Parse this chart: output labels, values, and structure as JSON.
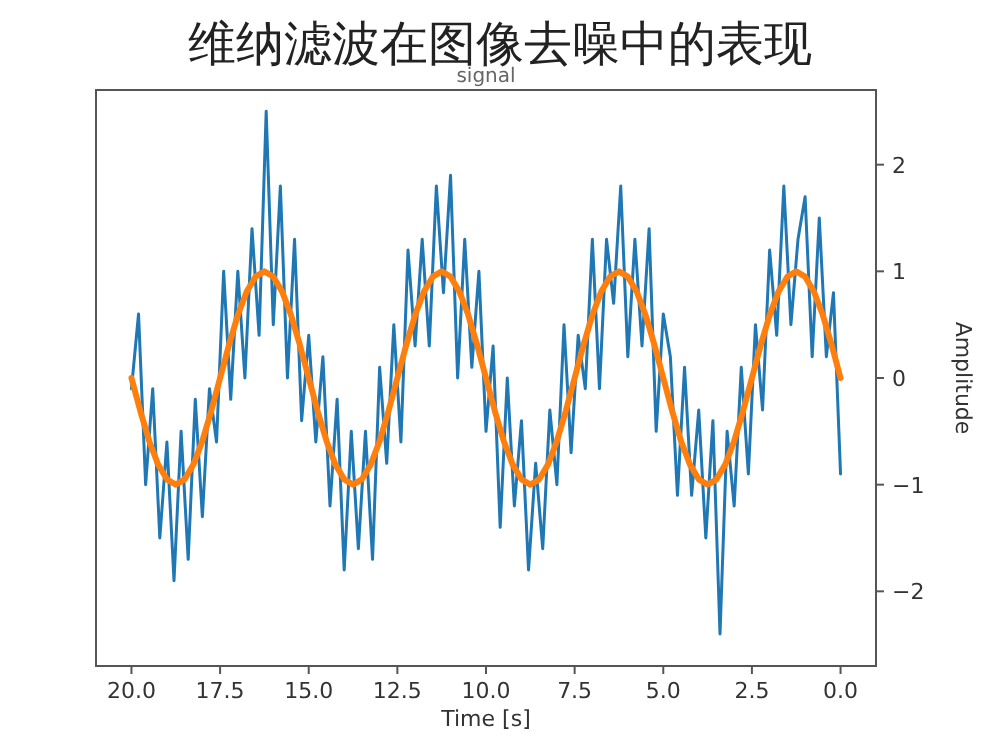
{
  "chart_data": {
    "type": "line",
    "title": "维纳滤波在图像去噪中的表现",
    "subtitle": "signal",
    "xlabel": "Time [s]",
    "ylabel": "Amplitude",
    "xlim": [
      21,
      -1
    ],
    "ylim": [
      -2.7,
      2.7
    ],
    "xticks": [
      {
        "value": 0,
        "label": "0.0"
      },
      {
        "value": 2.5,
        "label": "2.5"
      },
      {
        "value": 5,
        "label": "5.0"
      },
      {
        "value": 7.5,
        "label": "7.5"
      },
      {
        "value": 10,
        "label": "10.0"
      },
      {
        "value": 12.5,
        "label": "12.5"
      },
      {
        "value": 15,
        "label": "15.0"
      },
      {
        "value": 17.5,
        "label": "17.5"
      },
      {
        "value": 20,
        "label": "20.0"
      }
    ],
    "yticks": [
      {
        "value": -2,
        "label": "−2"
      },
      {
        "value": -1,
        "label": "−1"
      },
      0,
      1,
      2
    ],
    "series": [
      {
        "color": "#1f77b4",
        "x": [
          0,
          0.2,
          0.4,
          0.6,
          0.8,
          1,
          1.2,
          1.4,
          1.6,
          1.8,
          2,
          2.2,
          2.4,
          2.6,
          2.8,
          3,
          3.2,
          3.4,
          3.6,
          3.8,
          4,
          4.2,
          4.4,
          4.6,
          4.8,
          5,
          5.2,
          5.4,
          5.6,
          5.8,
          6,
          6.2,
          6.4,
          6.6,
          6.8,
          7,
          7.2,
          7.4,
          7.6,
          7.8,
          8,
          8.2,
          8.4,
          8.6,
          8.8,
          9,
          9.2,
          9.4,
          9.6,
          9.8,
          10,
          10.2,
          10.4,
          10.6,
          10.8,
          11,
          11.2,
          11.4,
          11.6,
          11.8,
          12,
          12.2,
          12.4,
          12.6,
          12.8,
          13,
          13.2,
          13.4,
          13.6,
          13.8,
          14,
          14.2,
          14.4,
          14.6,
          14.8,
          15,
          15.2,
          15.4,
          15.6,
          15.8,
          16,
          16.2,
          16.4,
          16.6,
          16.8,
          17,
          17.2,
          17.4,
          17.6,
          17.8,
          18,
          18.2,
          18.4,
          18.6,
          18.8,
          19,
          19.2,
          19.4,
          19.6,
          19.8,
          20
        ],
        "values": [
          -0.9,
          0.8,
          0.2,
          1.5,
          0.2,
          1.7,
          1.3,
          0.5,
          1.8,
          0.4,
          1.2,
          -0.3,
          0.5,
          -0.9,
          0.1,
          -1.2,
          -0.5,
          -2.4,
          -0.4,
          -1.5,
          -0.3,
          -1.1,
          0.1,
          -1.1,
          0.2,
          0.6,
          -0.5,
          1.4,
          0.3,
          1.3,
          0.2,
          1.8,
          0.7,
          1.3,
          -0.1,
          1.3,
          -0.1,
          0.4,
          -0.7,
          0.5,
          -1.0,
          -0.3,
          -1.6,
          -0.8,
          -1.8,
          -0.4,
          -1.2,
          0.0,
          -1.4,
          0.3,
          -0.5,
          1.0,
          0.1,
          1.3,
          0.0,
          1.9,
          0.8,
          1.8,
          0.3,
          1.3,
          0.3,
          1.2,
          -0.6,
          0.5,
          -0.8,
          0.1,
          -1.7,
          -0.5,
          -1.6,
          -0.5,
          -1.8,
          -0.2,
          -1.2,
          0.2,
          -0.6,
          0.4,
          -0.4,
          1.3,
          0.0,
          1.8,
          0.5,
          2.5,
          0.4,
          1.4,
          0.0,
          1.0,
          -0.2,
          1.0,
          -0.6,
          -0.1,
          -1.3,
          -0.2,
          -1.7,
          -0.5,
          -1.9,
          -0.6,
          -1.5,
          -0.1,
          -1.0,
          0.6,
          -0.1
        ]
      },
      {
        "color": "#ff7f0e",
        "x": [
          0,
          0.25,
          0.5,
          0.75,
          1,
          1.25,
          1.5,
          1.75,
          2,
          2.25,
          2.5,
          2.75,
          3,
          3.25,
          3.5,
          3.75,
          4,
          4.25,
          4.5,
          4.75,
          5,
          5.25,
          5.5,
          5.75,
          6,
          6.25,
          6.5,
          6.75,
          7,
          7.25,
          7.5,
          7.75,
          8,
          8.25,
          8.5,
          8.75,
          9,
          9.25,
          9.5,
          9.75,
          10,
          10.25,
          10.5,
          10.75,
          11,
          11.25,
          11.5,
          11.75,
          12,
          12.25,
          12.5,
          12.75,
          13,
          13.25,
          13.5,
          13.75,
          14,
          14.25,
          14.5,
          14.75,
          15,
          15.25,
          15.5,
          15.75,
          16,
          16.25,
          16.5,
          16.75,
          17,
          17.25,
          17.5,
          17.75,
          18,
          18.25,
          18.5,
          18.75,
          19,
          19.25,
          19.5,
          19.75,
          20
        ],
        "values": [
          0,
          0.31,
          0.59,
          0.81,
          0.95,
          1,
          0.95,
          0.81,
          0.59,
          0.31,
          0,
          -0.31,
          -0.59,
          -0.81,
          -0.95,
          -1,
          -0.95,
          -0.81,
          -0.59,
          -0.31,
          0,
          0.31,
          0.59,
          0.81,
          0.95,
          1,
          0.95,
          0.81,
          0.59,
          0.31,
          0,
          -0.31,
          -0.59,
          -0.81,
          -0.95,
          -1,
          -0.95,
          -0.81,
          -0.59,
          -0.31,
          0,
          0.31,
          0.59,
          0.81,
          0.95,
          1,
          0.95,
          0.81,
          0.59,
          0.31,
          0,
          -0.31,
          -0.59,
          -0.81,
          -0.95,
          -1,
          -0.95,
          -0.81,
          -0.59,
          -0.31,
          0,
          0.31,
          0.59,
          0.81,
          0.95,
          1,
          0.95,
          0.81,
          0.59,
          0.31,
          0,
          -0.31,
          -0.59,
          -0.81,
          -0.95,
          -1,
          -0.95,
          -0.81,
          -0.59,
          -0.31,
          0
        ]
      }
    ]
  }
}
